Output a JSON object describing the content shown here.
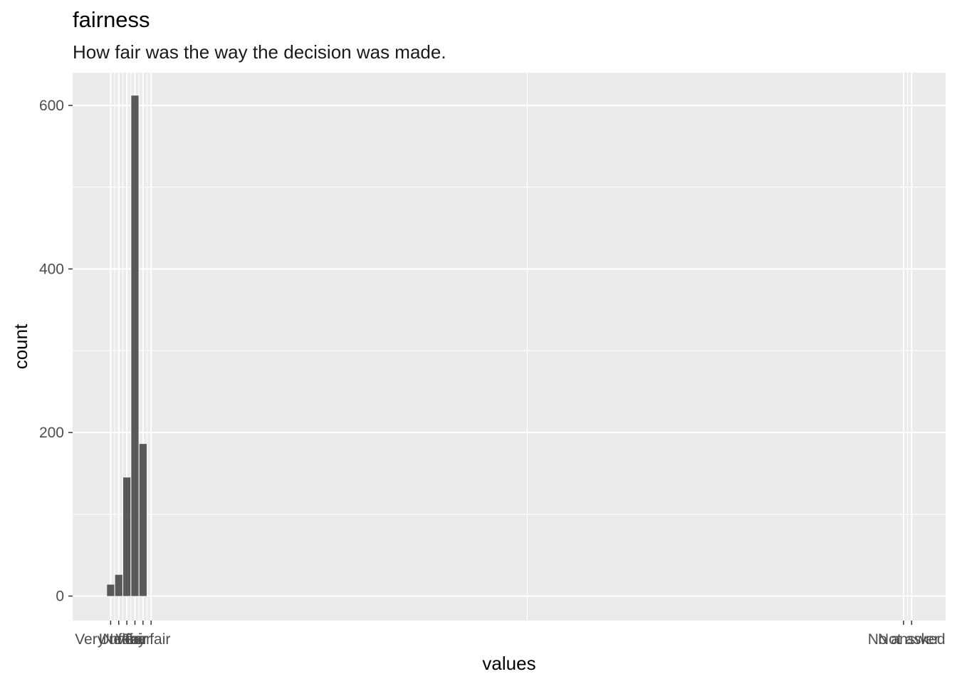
{
  "title": "fairness",
  "subtitle": "How fair was the way the decision was made.",
  "chart_data": {
    "type": "bar",
    "title": "fairness",
    "subtitle": "How fair was the way the decision was made.",
    "xlabel": "values",
    "ylabel": "count",
    "x_numeric": [
      1,
      2,
      3,
      4,
      5,
      6,
      99,
      100
    ],
    "categories": [
      "Very unfair",
      "Unfair",
      "Neither",
      "Fair",
      "Very fair",
      "",
      "No answer",
      "Not asked"
    ],
    "values": [
      14,
      26,
      145,
      612,
      186,
      0,
      0,
      0
    ],
    "xlim": [
      -3.7,
      104.2
    ],
    "ylim": [
      -30,
      640
    ],
    "y_ticks": [
      0,
      200,
      400,
      600
    ],
    "y_ticklabels": [
      "0",
      "200",
      "400",
      "600"
    ],
    "grid": true,
    "colors": {
      "bar": "#595959",
      "panel": "#ebebeb",
      "grid": "#ffffff"
    }
  }
}
